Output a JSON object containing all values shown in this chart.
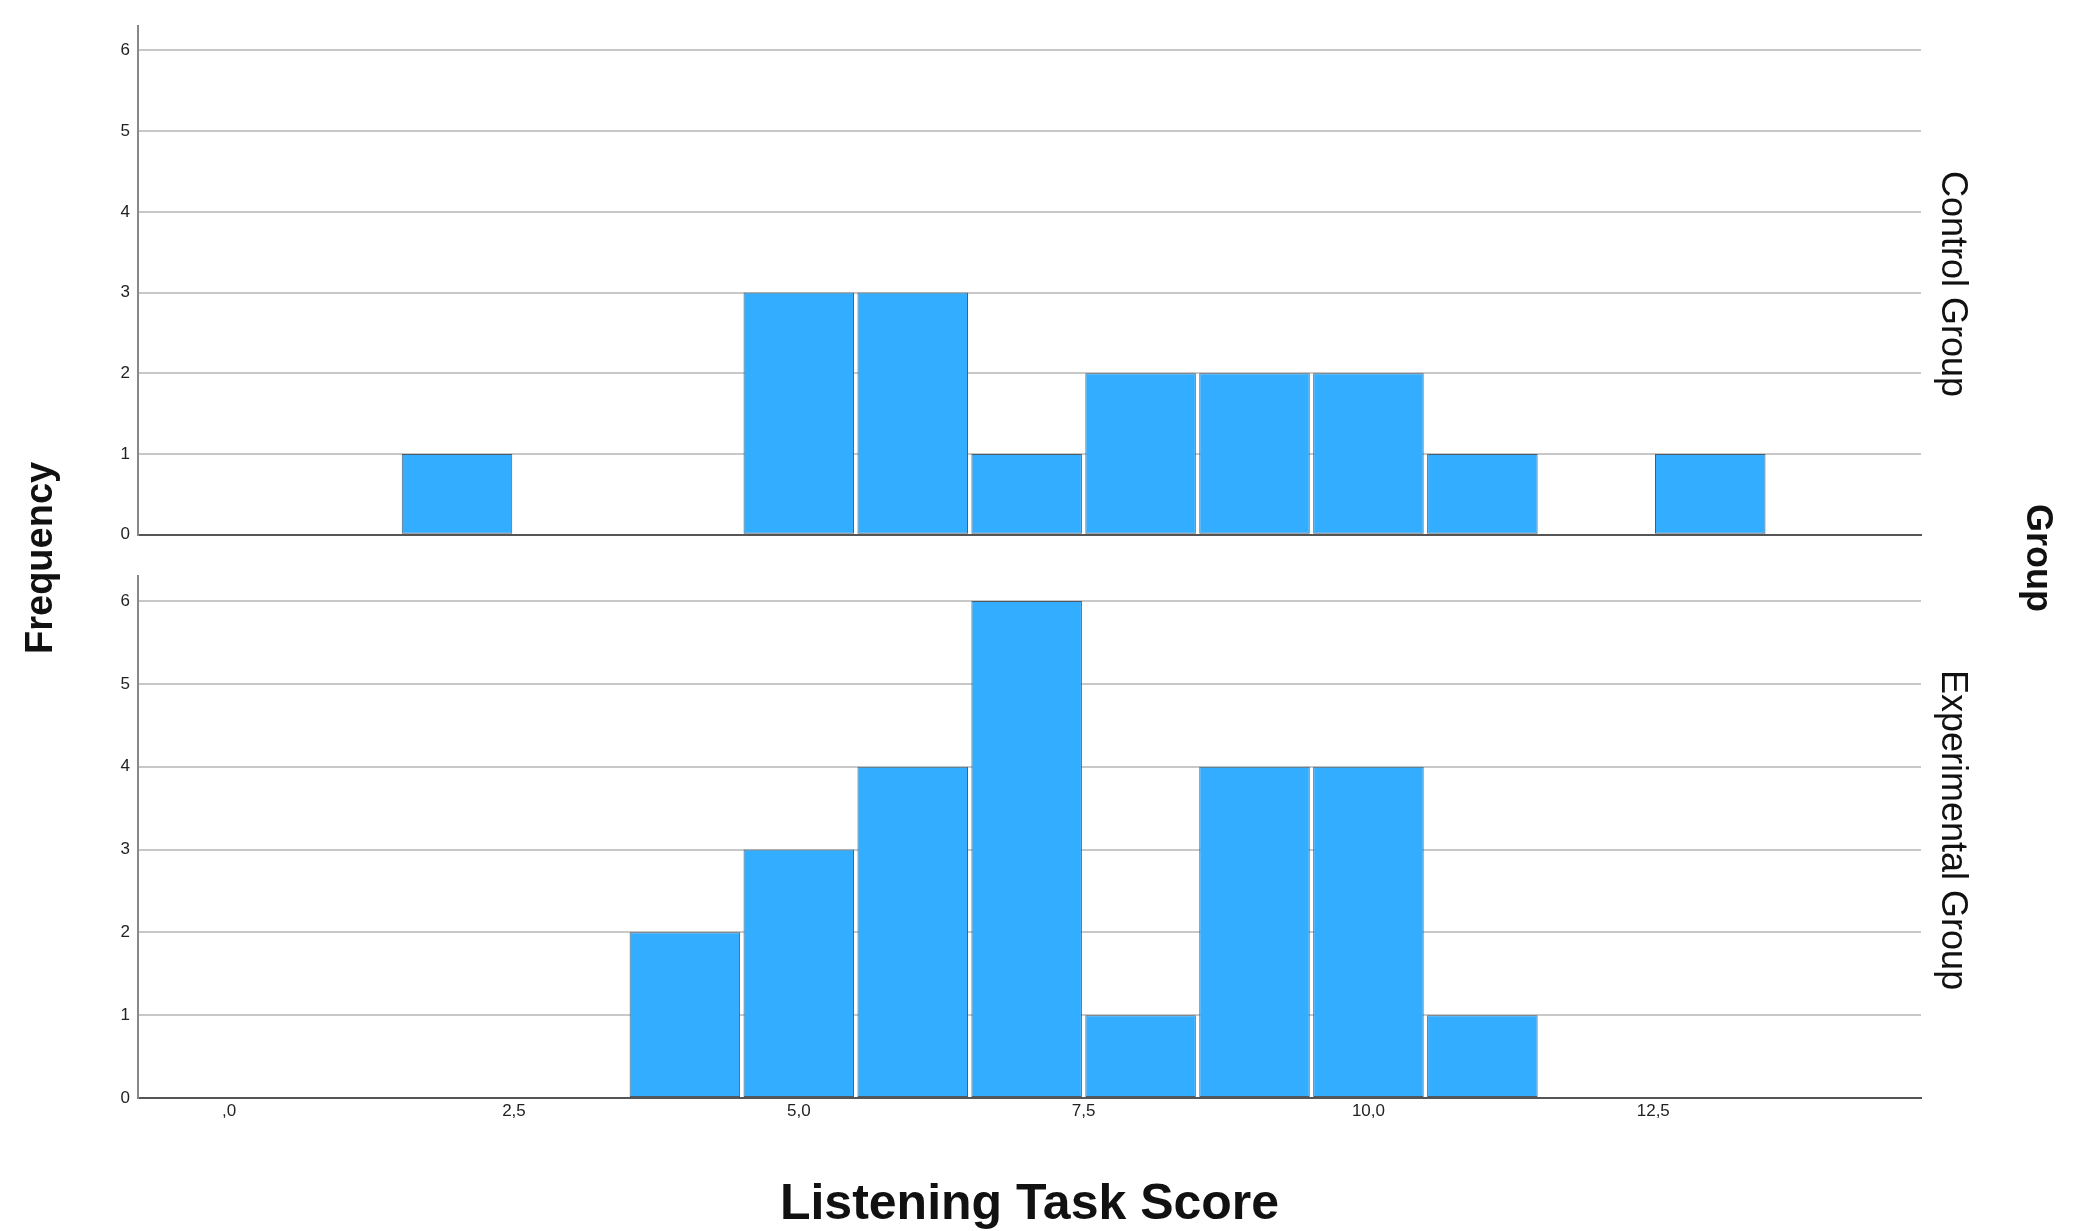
{
  "chart_data": [
    {
      "type": "histogram",
      "title": "Control Group",
      "ylabel": "Frequency",
      "annotations": [
        "Group"
      ],
      "bins": [
        1.5,
        2.5,
        3.5,
        4.5,
        5.5,
        6.5,
        7.5,
        8.5,
        9.5,
        10.5,
        11.5,
        12.5,
        13.5
      ],
      "values": [
        1,
        0,
        0,
        3,
        3,
        1,
        2,
        2,
        2,
        1,
        0,
        1
      ],
      "color": "#33adff",
      "xlim": [
        -0.8,
        14.85
      ],
      "ylim": [
        0,
        6.3
      ],
      "yticks": [
        0,
        1,
        2,
        3,
        4,
        5,
        6
      ],
      "grid": "y",
      "tick_labels": "y"
    },
    {
      "type": "histogram",
      "title": "Experimental Group",
      "xlabel": "Listening Task Score",
      "bins": [
        3.5,
        4.5,
        5.5,
        6.5,
        7.5,
        8.5,
        9.5,
        10.5,
        11.5
      ],
      "values": [
        2,
        3,
        4,
        6,
        1,
        4,
        4,
        1
      ],
      "color": "#33adff",
      "xlim": [
        -0.8,
        14.85
      ],
      "xticks": [
        {
          "value": 0,
          "label": ",0"
        },
        {
          "value": 2.5,
          "label": "2,5"
        },
        {
          "value": 5,
          "label": "5,0"
        },
        {
          "value": 7.5,
          "label": "7,5"
        },
        {
          "value": 10,
          "label": "10,0"
        },
        {
          "value": 12.5,
          "label": "12,5"
        }
      ],
      "ylim": [
        0,
        6.3
      ],
      "yticks": [
        0,
        1,
        2,
        3,
        4,
        5,
        6
      ],
      "grid": "y"
    }
  ]
}
